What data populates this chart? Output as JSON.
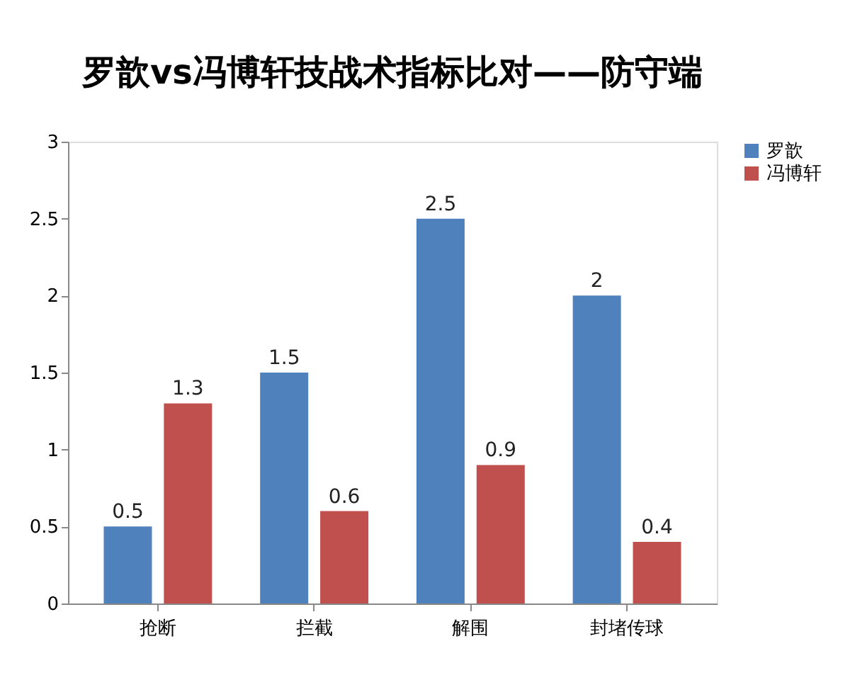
{
  "chart_data": {
    "type": "bar",
    "title": "罗歆vs冯博轩技战术指标比对——防守端",
    "categories": [
      "抢断",
      "拦截",
      "解围",
      "封堵传球"
    ],
    "series": [
      {
        "name": "罗歆",
        "color": "#4f81bd",
        "values": [
          0.5,
          1.5,
          2.5,
          2
        ]
      },
      {
        "name": "冯博轩",
        "color": "#c0504d",
        "values": [
          1.3,
          0.6,
          0.9,
          0.4
        ]
      }
    ],
    "ylim": [
      0,
      3
    ],
    "yticks": [
      0,
      0.5,
      1,
      1.5,
      2,
      2.5,
      3
    ],
    "grid": false,
    "legend": "right",
    "data_labels": true
  }
}
